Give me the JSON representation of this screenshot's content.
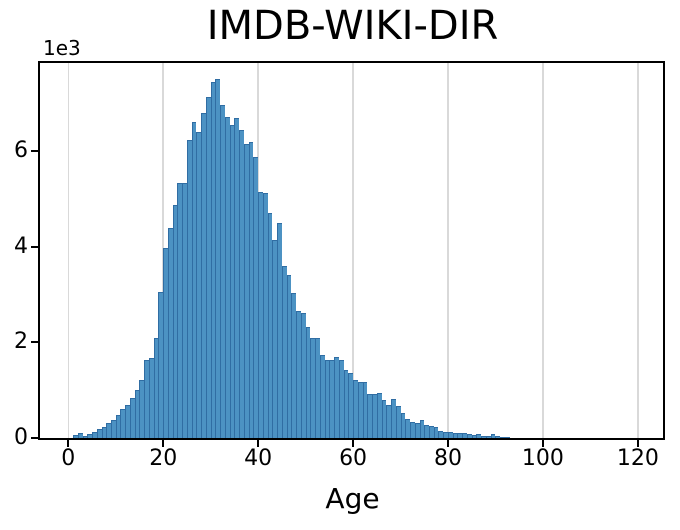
{
  "colors": {
    "bar_fill": "#4C92C3",
    "bar_edge": "#306DA3",
    "gridline": "#D9D9D9",
    "spine": "#000000",
    "background": "#FFFFFF",
    "text": "#000000"
  },
  "chart_data": {
    "type": "bar",
    "title": "IMDB-WIKI-DIR",
    "xlabel": "Age",
    "ylabel": "",
    "y_offset_text": "1e3",
    "y_tick_scale": 1000,
    "x_ticks": [
      0,
      20,
      40,
      60,
      80,
      100,
      120
    ],
    "y_ticks": [
      0,
      2,
      4,
      6
    ],
    "xlim": [
      -5.96,
      125.3
    ],
    "ylim": [
      0,
      7852
    ],
    "grid": "vertical-only",
    "legend": null,
    "bin_width": 1,
    "bin_start_age": 0,
    "ages": [
      0,
      1,
      2,
      3,
      4,
      5,
      6,
      7,
      8,
      9,
      10,
      11,
      12,
      13,
      14,
      15,
      16,
      17,
      18,
      19,
      20,
      21,
      22,
      23,
      24,
      25,
      26,
      27,
      28,
      29,
      30,
      31,
      32,
      33,
      34,
      35,
      36,
      37,
      38,
      39,
      40,
      41,
      42,
      43,
      44,
      45,
      46,
      47,
      48,
      49,
      50,
      51,
      52,
      53,
      54,
      55,
      56,
      57,
      58,
      59,
      60,
      61,
      62,
      63,
      64,
      65,
      66,
      67,
      68,
      69,
      70,
      71,
      72,
      73,
      74,
      75,
      76,
      77,
      78,
      79,
      80,
      81,
      82,
      83,
      84,
      85,
      86,
      87,
      88,
      89,
      90,
      91,
      92,
      93,
      94,
      95
    ],
    "counts": [
      10,
      60,
      100,
      45,
      75,
      130,
      180,
      240,
      305,
      380,
      480,
      600,
      690,
      830,
      1005,
      1215,
      1640,
      1670,
      2100,
      3060,
      3970,
      4390,
      4870,
      5330,
      5330,
      6240,
      6610,
      6410,
      6800,
      7130,
      7460,
      7510,
      6970,
      6720,
      6560,
      6700,
      6440,
      6150,
      6190,
      5880,
      5160,
      5120,
      4720,
      4150,
      4500,
      3600,
      3410,
      3040,
      2650,
      2620,
      2320,
      2090,
      2090,
      1740,
      1630,
      1630,
      1690,
      1630,
      1420,
      1360,
      1210,
      1170,
      1170,
      920,
      920,
      940,
      800,
      690,
      820,
      670,
      520,
      390,
      340,
      310,
      380,
      270,
      245,
      230,
      155,
      135,
      135,
      115,
      100,
      100,
      80,
      65,
      78,
      50,
      50,
      78,
      45,
      30,
      22,
      10,
      5,
      3
    ]
  }
}
